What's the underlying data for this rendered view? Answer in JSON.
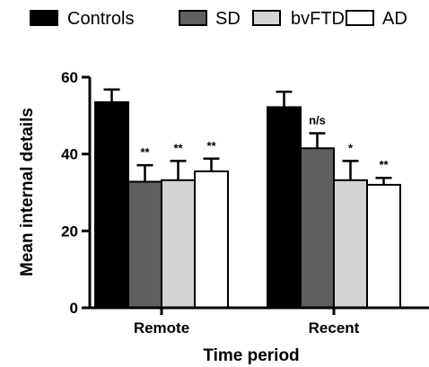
{
  "chart_data": {
    "type": "bar",
    "categories": [
      "Remote",
      "Recent"
    ],
    "series": [
      {
        "name": "Controls",
        "values": [
          53.5,
          52.2
        ],
        "errors": [
          3.3,
          4.0
        ],
        "color": "#000000"
      },
      {
        "name": "SD",
        "values": [
          32.8,
          41.5
        ],
        "errors": [
          4.3,
          3.9
        ],
        "color": "#5f5f5f"
      },
      {
        "name": "bvFTD",
        "values": [
          33.2,
          33.2
        ],
        "errors": [
          5.0,
          5.0
        ],
        "color": "#d4d4d4"
      },
      {
        "name": "AD",
        "values": [
          35.5,
          32.0
        ],
        "errors": [
          3.3,
          1.8
        ],
        "color": "#ffffff"
      }
    ],
    "annotations": [
      [
        "",
        "**",
        "**",
        "**"
      ],
      [
        "",
        "n/s",
        "*",
        "**"
      ]
    ],
    "xlabel": "Time period",
    "ylabel": "Mean internal details",
    "ylim": [
      0,
      60
    ],
    "yticks": [
      "0",
      "20",
      "40",
      "60"
    ],
    "grid": false,
    "legend_position": "top"
  }
}
